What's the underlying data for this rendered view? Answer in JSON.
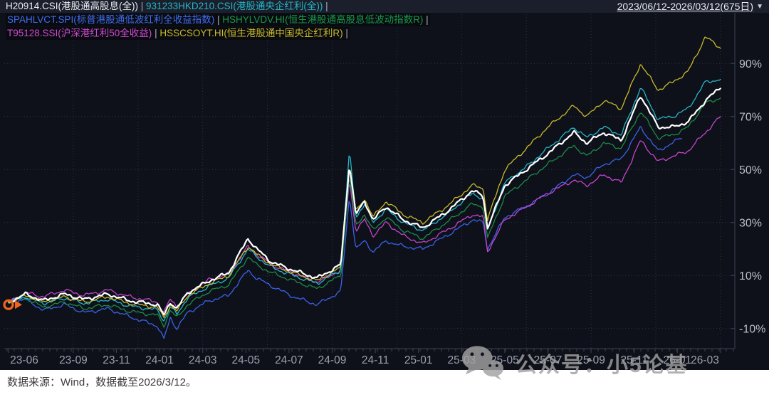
{
  "header": {
    "date_range": "2023/06/12-2026/03/12(675日)",
    "dropdown_icon": "▼"
  },
  "legend": {
    "separator": " | ",
    "rows": [
      {
        "items": [
          {
            "code": "H20914.CSI",
            "text": "H20914.CSI(港股通高股息(全))",
            "color": "#eceef4"
          },
          {
            "code": "931233HKD210.CSI",
            "text": "931233HKD210.CSI(港股通央企红利(全))",
            "color": "#25b6c9"
          }
        ],
        "trailing_sep": true
      },
      {
        "items": [
          {
            "code": "SPAHLVCT.SPI",
            "text": "SPAHLVCT.SPI(标普港股通低波红利全收益指数)",
            "color": "#3f6df0"
          },
          {
            "code": "HSHYLVDV.HI",
            "text": "HSHYLVDV.HI(恒生港股通高股息低波动指数R)",
            "color": "#17984a"
          }
        ],
        "trailing_sep": true
      },
      {
        "items": [
          {
            "code": "T95128.SSI",
            "text": "T95128.SSI(沪深港红利50全收益)",
            "color": "#cf4ad2"
          },
          {
            "code": "HSSCSOYT.HI",
            "text": "HSSCSOYT.HI(恒生港股通中国央企红利R)",
            "color": "#c9ba2b"
          }
        ],
        "trailing_sep": true
      }
    ]
  },
  "chart_data": {
    "type": "line",
    "x_unit": "months since 2023-06-12",
    "x_range": [
      0,
      33.2
    ],
    "y_range_pct": [
      -17,
      110
    ],
    "grid": "dotted",
    "legend_position": "top-left",
    "y_ticks": [
      {
        "v": 90,
        "label": "90%"
      },
      {
        "v": 70,
        "label": "70%"
      },
      {
        "v": 50,
        "label": "50%"
      },
      {
        "v": 30,
        "label": "30%"
      },
      {
        "v": 10,
        "label": "10%"
      },
      {
        "v": -10,
        "label": "-10%"
      }
    ],
    "x_ticks": [
      {
        "t": 0,
        "label": "23-06"
      },
      {
        "t": 3,
        "label": "23-09"
      },
      {
        "t": 5,
        "label": "23-11"
      },
      {
        "t": 7,
        "label": "24-01"
      },
      {
        "t": 9,
        "label": "24-03"
      },
      {
        "t": 11,
        "label": "24-05"
      },
      {
        "t": 13,
        "label": "24-07"
      },
      {
        "t": 15,
        "label": "24-09"
      },
      {
        "t": 17,
        "label": "24-11"
      },
      {
        "t": 19,
        "label": "25-01"
      },
      {
        "t": 21,
        "label": "25-03"
      },
      {
        "t": 23,
        "label": "25-05"
      },
      {
        "t": 25,
        "label": "25-07"
      },
      {
        "t": 27,
        "label": "25-09"
      },
      {
        "t": 29,
        "label": "25-11"
      },
      {
        "t": 31,
        "label": "26-01"
      },
      {
        "t": 33,
        "label": "26-03"
      }
    ],
    "grid_x_t": [
      3,
      6,
      9,
      12,
      15,
      18,
      21,
      24,
      27,
      30,
      33
    ],
    "draw_order": [
      2,
      4,
      3,
      1,
      5,
      0
    ],
    "series": [
      {
        "name": "H20914.CSI",
        "label": "港股通高股息(全)",
        "color": "#ffffff",
        "emphasis": true,
        "points": [
          [
            0,
            0
          ],
          [
            0.8,
            3
          ],
          [
            1.6,
            0.5
          ],
          [
            2.6,
            3
          ],
          [
            3.5,
            1
          ],
          [
            4.6,
            3
          ],
          [
            5.6,
            0.5
          ],
          [
            6.9,
            -1
          ],
          [
            7.2,
            -5
          ],
          [
            7.5,
            0
          ],
          [
            7.8,
            -2.5
          ],
          [
            8.3,
            3.5
          ],
          [
            9.3,
            8
          ],
          [
            10.2,
            11
          ],
          [
            11.1,
            24
          ],
          [
            11.5,
            20
          ],
          [
            12.2,
            15
          ],
          [
            13.2,
            12
          ],
          [
            14.3,
            9
          ],
          [
            15.4,
            14
          ],
          [
            15.8,
            52
          ],
          [
            16.1,
            33
          ],
          [
            16.5,
            38
          ],
          [
            16.9,
            31
          ],
          [
            17.5,
            36
          ],
          [
            18.3,
            31
          ],
          [
            19.2,
            28
          ],
          [
            20.3,
            34
          ],
          [
            21.5,
            42
          ],
          [
            22,
            40
          ],
          [
            22.2,
            28
          ],
          [
            23,
            44
          ],
          [
            24,
            50
          ],
          [
            25,
            56
          ],
          [
            26.2,
            64
          ],
          [
            26.8,
            60
          ],
          [
            27.6,
            64
          ],
          [
            28.4,
            61
          ],
          [
            29.3,
            78
          ],
          [
            30.1,
            66
          ],
          [
            30.8,
            66
          ],
          [
            31.5,
            68
          ],
          [
            32.3,
            76
          ],
          [
            33,
            81
          ]
        ]
      },
      {
        "name": "931233HKD210.CSI",
        "label": "港股通央企红利(全)",
        "color": "#25b6c9",
        "emphasis": false,
        "points": [
          [
            0,
            0
          ],
          [
            0.8,
            2
          ],
          [
            1.6,
            -0.5
          ],
          [
            2.6,
            1.5
          ],
          [
            3.5,
            -0.5
          ],
          [
            4.6,
            1
          ],
          [
            5.6,
            -1.5
          ],
          [
            6.9,
            -3
          ],
          [
            7.2,
            -7
          ],
          [
            7.5,
            -2
          ],
          [
            7.8,
            -4.5
          ],
          [
            8.3,
            1.5
          ],
          [
            9.3,
            6
          ],
          [
            10.2,
            9
          ],
          [
            11.1,
            20
          ],
          [
            11.5,
            17
          ],
          [
            12.2,
            13
          ],
          [
            13.2,
            10
          ],
          [
            14.3,
            7
          ],
          [
            15.4,
            12
          ],
          [
            15.8,
            57
          ],
          [
            16.1,
            32
          ],
          [
            16.5,
            37
          ],
          [
            16.9,
            30
          ],
          [
            17.5,
            35
          ],
          [
            18.3,
            30
          ],
          [
            19.2,
            27
          ],
          [
            20.3,
            33
          ],
          [
            21.5,
            41
          ],
          [
            22,
            39
          ],
          [
            22.2,
            27
          ],
          [
            23,
            45
          ],
          [
            24,
            51
          ],
          [
            25,
            58
          ],
          [
            26.2,
            66
          ],
          [
            26.8,
            62
          ],
          [
            27.6,
            66
          ],
          [
            28.4,
            63
          ],
          [
            29.3,
            81
          ],
          [
            30.1,
            69
          ],
          [
            30.8,
            70
          ],
          [
            31.5,
            73
          ],
          [
            32.3,
            83
          ],
          [
            33,
            84
          ]
        ]
      },
      {
        "name": "SPAHLVCT.SPI",
        "label": "标普港股通低波红利全收益指数",
        "color": "#3a62e8",
        "emphasis": false,
        "points": [
          [
            0,
            0
          ],
          [
            0.8,
            1
          ],
          [
            1.6,
            -3
          ],
          [
            2.6,
            -1
          ],
          [
            3.5,
            -4
          ],
          [
            4.6,
            -2.5
          ],
          [
            5.6,
            -5.5
          ],
          [
            6.9,
            -9
          ],
          [
            7.2,
            -14
          ],
          [
            7.5,
            -6
          ],
          [
            7.8,
            -10
          ],
          [
            8.3,
            -4
          ],
          [
            9.3,
            0.5
          ],
          [
            10.2,
            2.5
          ],
          [
            11.1,
            12
          ],
          [
            11.5,
            9
          ],
          [
            12.2,
            6
          ],
          [
            13.2,
            2
          ],
          [
            14.3,
            -1
          ],
          [
            15.4,
            4
          ],
          [
            15.8,
            40
          ],
          [
            16.1,
            20
          ],
          [
            16.5,
            23
          ],
          [
            16.9,
            19
          ],
          [
            17.5,
            23
          ],
          [
            18.3,
            21
          ],
          [
            19.2,
            20
          ],
          [
            20.3,
            25
          ],
          [
            21.5,
            31
          ],
          [
            22,
            30
          ],
          [
            22.2,
            20
          ],
          [
            23,
            32
          ],
          [
            24,
            36
          ],
          [
            25,
            41
          ],
          [
            26.2,
            48
          ],
          [
            26.8,
            47
          ],
          [
            27.6,
            52
          ],
          [
            28.4,
            54
          ],
          [
            29.3,
            66
          ],
          [
            30.1,
            57
          ],
          [
            31.2,
            62
          ]
        ]
      },
      {
        "name": "HSHYLVDV.HI",
        "label": "恒生港股通高股息低波动指数R",
        "color": "#1d8a45",
        "emphasis": false,
        "points": [
          [
            0,
            0
          ],
          [
            0.8,
            1.5
          ],
          [
            1.6,
            -2
          ],
          [
            2.6,
            0
          ],
          [
            3.5,
            -2.5
          ],
          [
            4.6,
            -1
          ],
          [
            5.6,
            -3.5
          ],
          [
            6.9,
            -5
          ],
          [
            7.2,
            -9
          ],
          [
            7.5,
            -3
          ],
          [
            7.8,
            -6
          ],
          [
            8.3,
            -1
          ],
          [
            9.3,
            4
          ],
          [
            10.2,
            6.5
          ],
          [
            11.1,
            17
          ],
          [
            11.5,
            14
          ],
          [
            12.2,
            11
          ],
          [
            13.2,
            8
          ],
          [
            14.3,
            5
          ],
          [
            15.4,
            10
          ],
          [
            15.8,
            48
          ],
          [
            16.1,
            29
          ],
          [
            16.5,
            33
          ],
          [
            16.9,
            27
          ],
          [
            17.5,
            32
          ],
          [
            18.3,
            27
          ],
          [
            19.2,
            24
          ],
          [
            20.3,
            30
          ],
          [
            21.5,
            37
          ],
          [
            22,
            36
          ],
          [
            22.2,
            24
          ],
          [
            23,
            40
          ],
          [
            24,
            46
          ],
          [
            25,
            52
          ],
          [
            26.2,
            59
          ],
          [
            26.8,
            55
          ],
          [
            27.6,
            60
          ],
          [
            28.4,
            58
          ],
          [
            29.3,
            72
          ],
          [
            30.1,
            62
          ],
          [
            30.8,
            63
          ],
          [
            31.5,
            66
          ],
          [
            32.3,
            75
          ],
          [
            33,
            77
          ]
        ]
      },
      {
        "name": "T95128.SSI",
        "label": "沪深港红利50全收益",
        "color": "#c544cc",
        "emphasis": false,
        "points": [
          [
            0,
            0
          ],
          [
            0.8,
            3.5
          ],
          [
            1.6,
            2
          ],
          [
            2.6,
            4.5
          ],
          [
            3.5,
            2.5
          ],
          [
            4.6,
            4.5
          ],
          [
            5.6,
            2
          ],
          [
            6.9,
            0
          ],
          [
            7.2,
            -4
          ],
          [
            7.5,
            1
          ],
          [
            7.8,
            -1.5
          ],
          [
            8.3,
            3
          ],
          [
            9.3,
            8.5
          ],
          [
            10.2,
            10.5
          ],
          [
            11.1,
            21
          ],
          [
            11.5,
            18
          ],
          [
            12.2,
            14
          ],
          [
            13.2,
            11
          ],
          [
            14.3,
            7.5
          ],
          [
            15.4,
            12
          ],
          [
            15.8,
            46
          ],
          [
            16.1,
            27
          ],
          [
            16.5,
            31
          ],
          [
            16.9,
            25
          ],
          [
            17.5,
            30
          ],
          [
            18.3,
            25
          ],
          [
            19.2,
            22
          ],
          [
            20.3,
            27
          ],
          [
            21.5,
            33
          ],
          [
            22,
            32
          ],
          [
            22.2,
            19
          ],
          [
            23,
            31
          ],
          [
            24,
            36
          ],
          [
            25,
            41
          ],
          [
            26.2,
            46
          ],
          [
            26.8,
            44
          ],
          [
            27.6,
            48
          ],
          [
            28.4,
            45
          ],
          [
            29.3,
            61
          ],
          [
            30.1,
            53
          ],
          [
            30.8,
            55
          ],
          [
            31.5,
            57
          ],
          [
            32.3,
            64
          ],
          [
            33,
            70
          ]
        ]
      },
      {
        "name": "HSSCSOYT.HI",
        "label": "恒生港股通中国央企红利R",
        "color": "#c9ba2b",
        "emphasis": false,
        "points": [
          [
            0,
            0
          ],
          [
            0.8,
            2.5
          ],
          [
            1.6,
            0
          ],
          [
            2.6,
            2
          ],
          [
            3.5,
            0
          ],
          [
            4.6,
            2
          ],
          [
            5.6,
            -0.5
          ],
          [
            6.9,
            -2
          ],
          [
            7.2,
            -6
          ],
          [
            7.5,
            -1
          ],
          [
            7.8,
            -3.5
          ],
          [
            8.3,
            2.5
          ],
          [
            9.3,
            7
          ],
          [
            10.2,
            10
          ],
          [
            11.1,
            21
          ],
          [
            11.5,
            18
          ],
          [
            12.2,
            14
          ],
          [
            13.2,
            11
          ],
          [
            14.3,
            8
          ],
          [
            15.4,
            13
          ],
          [
            15.8,
            52
          ],
          [
            16.1,
            34
          ],
          [
            16.5,
            39
          ],
          [
            16.9,
            32
          ],
          [
            17.5,
            38
          ],
          [
            18.3,
            33
          ],
          [
            19.2,
            30
          ],
          [
            20.3,
            36
          ],
          [
            21.5,
            44
          ],
          [
            22,
            43
          ],
          [
            22.2,
            31
          ],
          [
            23,
            50
          ],
          [
            24,
            58
          ],
          [
            25,
            66
          ],
          [
            26.2,
            74
          ],
          [
            26.8,
            70
          ],
          [
            27.6,
            76
          ],
          [
            28.4,
            73
          ],
          [
            29.3,
            90
          ],
          [
            30.1,
            80
          ],
          [
            30.8,
            83
          ],
          [
            31.5,
            87
          ],
          [
            32.3,
            100
          ],
          [
            33,
            96
          ]
        ]
      }
    ],
    "start_marker": {
      "t": 0,
      "v": -1,
      "color": "#f2641c"
    }
  },
  "palette": {
    "background": "#0e111a",
    "topbar": "#1a1f2b",
    "grid": "#2c3242",
    "axis": "#3c4252",
    "x_label": "#9ba1ad",
    "y_label": "#b9bec8",
    "footer_bg": "#ffffff"
  },
  "watermark": {
    "text": "公众号：小5论基",
    "icon": "wechat-icon"
  },
  "footer": {
    "source_note": "数据来源：Wind，数据截至2026/3/12。"
  }
}
